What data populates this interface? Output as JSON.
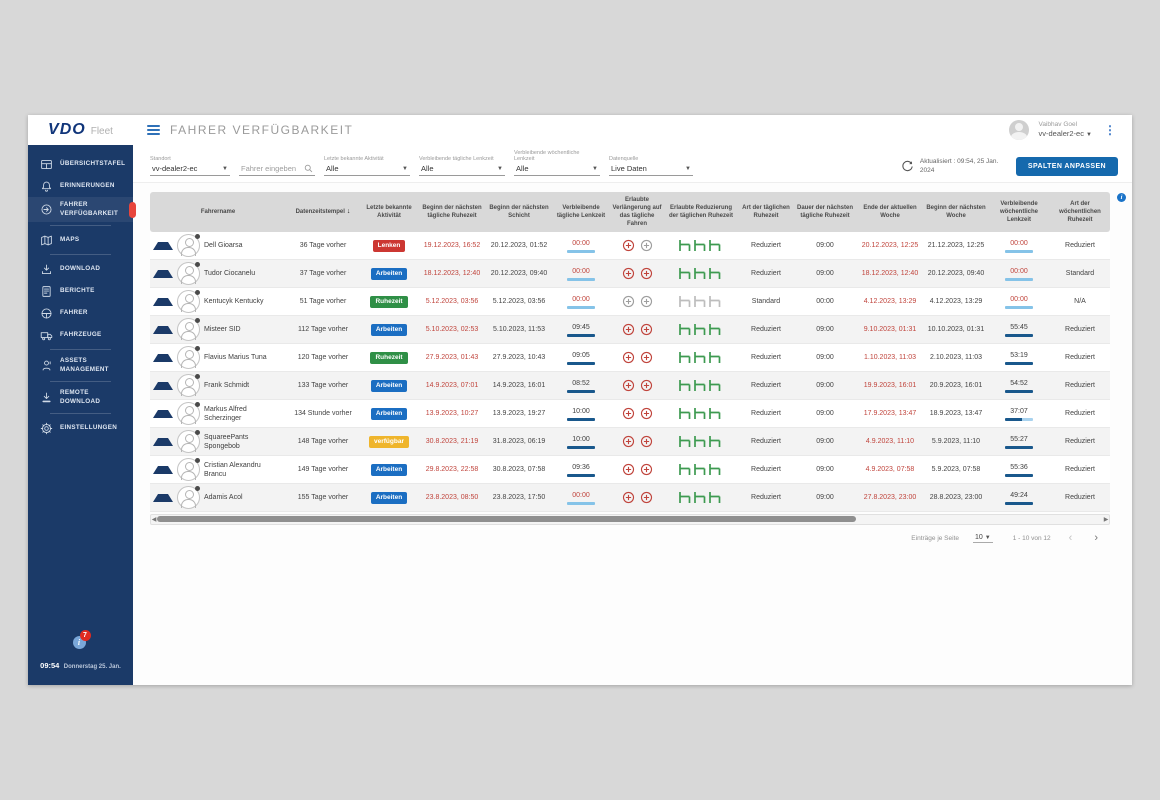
{
  "window": {
    "brand": "VDO",
    "brand_sub": "Fleet",
    "page_title": "FAHRER VERFÜGBARKEIT",
    "user": {
      "name": "Vaibhav Goel",
      "account": "vv-dealer2-ec"
    }
  },
  "sidebar": {
    "items": [
      {
        "icon": "dashboard-icon",
        "label": "ÜBERSICHTSTAFEL",
        "active": false,
        "divider": false
      },
      {
        "icon": "bell-icon",
        "label": "ERINNERUNGEN",
        "active": false,
        "divider": false
      },
      {
        "icon": "availability-icon",
        "label": "FAHRER VERFÜGBARKEIT",
        "active": true,
        "divider": false
      },
      {
        "icon": "map-icon",
        "label": "MAPS",
        "active": false,
        "divider": true
      },
      {
        "icon": "download-icon",
        "label": "DOWNLOAD",
        "active": false,
        "divider": true
      },
      {
        "icon": "report-icon",
        "label": "BERICHTE",
        "active": false,
        "divider": false
      },
      {
        "icon": "driver-icon",
        "label": "FAHRER",
        "active": false,
        "divider": false
      },
      {
        "icon": "truck-icon",
        "label": "FAHRZEUGE",
        "active": false,
        "divider": false
      },
      {
        "icon": "assets-icon",
        "label": "ASSETS MANAGEMENT",
        "active": false,
        "divider": true
      },
      {
        "icon": "remote-download-icon",
        "label": "REMOTE DOWNLOAD",
        "active": false,
        "divider": true
      },
      {
        "icon": "gear-icon",
        "label": "EINSTELLUNGEN",
        "active": false,
        "divider": true
      }
    ],
    "notification_badge": "7",
    "clock": "09:54",
    "date": "Donnerstag 25. Jan."
  },
  "filters": {
    "standort_label": "Standort",
    "standort_value": "vv-dealer2-ec",
    "search_placeholder": "Fahrer eingeben",
    "activity_label": "Letzte bekannte Aktivität",
    "activity_value": "Alle",
    "daily_label": "Verbleibende tägliche Lenkzeit",
    "daily_value": "Alle",
    "weekly_label": "Verbleibende wöchentliche Lenkzeit",
    "weekly_value": "Alle",
    "source_label": "Datenquelle",
    "source_value": "Live Daten",
    "refreshed_label": "Aktualisiert : 09:54, 25 Jan. 2024",
    "columns_button": "SPALTEN ANPASSEN"
  },
  "table": {
    "headers": [
      "Fahrername",
      "Datenzeitstempel",
      "Letzte bekannte Aktivität",
      "Beginn der nächsten tägliche Ruhezeit",
      "Beginn der nächsten Schicht",
      "Verbleibende tägliche Lenkzeit",
      "Erlaubte Verlängerung auf das tägliche Fahren",
      "Erlaubte Reduzierung der täglichen Ruhezeit",
      "Art der täglichen Ruhezeit",
      "Dauer der nächsten tägliche Ruhezeit",
      "Ende der aktuellen Woche",
      "Beginn der nächsten Woche",
      "Verbleibende wöchentliche Lenkzeit",
      "Art der wöchentlichen Ruhezeit"
    ],
    "sorted_column": "Datenzeitstempel",
    "rows": [
      {
        "name": "Dell Gioarsa",
        "timestamp": "36 Tage vorher",
        "activity": "Lenken",
        "activity_color": "red-b",
        "next_rest_begin": "19.12.2023, 16:52",
        "next_shift_begin": "20.12.2023, 01:52",
        "daily_remaining": "00:00",
        "daily_alert": true,
        "daily_bar": "light",
        "extension_clocks": [
          "red-c",
          "gray-c"
        ],
        "reduction_color": "green",
        "daily_rest_type": "Reduziert",
        "next_rest_duration": "09:00",
        "current_week_end": "20.12.2023, 12:25",
        "next_week_begin": "21.12.2023, 12:25",
        "weekly_remaining": "00:00",
        "weekly_alert": true,
        "weekly_bar": "light",
        "weekly_rest_type": "Reduziert"
      },
      {
        "name": "Tudor Ciocanelu",
        "timestamp": "37 Tage vorher",
        "activity": "Arbeiten",
        "activity_color": "blue-b",
        "next_rest_begin": "18.12.2023, 12:40",
        "next_shift_begin": "20.12.2023, 09:40",
        "daily_remaining": "00:00",
        "daily_alert": true,
        "daily_bar": "light",
        "extension_clocks": [
          "red-c",
          "red-c"
        ],
        "reduction_color": "green",
        "daily_rest_type": "Reduziert",
        "next_rest_duration": "09:00",
        "current_week_end": "18.12.2023, 12:40",
        "next_week_begin": "20.12.2023, 09:40",
        "weekly_remaining": "00:00",
        "weekly_alert": true,
        "weekly_bar": "light",
        "weekly_rest_type": "Standard"
      },
      {
        "name": "Kentucyk Kentucky",
        "timestamp": "51 Tage vorher",
        "activity": "Ruhezeit",
        "activity_color": "green-b",
        "next_rest_begin": "5.12.2023, 03:56",
        "next_shift_begin": "5.12.2023, 03:56",
        "daily_remaining": "00:00",
        "daily_alert": true,
        "daily_bar": "light",
        "extension_clocks": [
          "gray-c",
          "gray-c"
        ],
        "reduction_color": "gray",
        "daily_rest_type": "Standard",
        "next_rest_duration": "00:00",
        "current_week_end": "4.12.2023, 13:29",
        "next_week_begin": "4.12.2023, 13:29",
        "weekly_remaining": "00:00",
        "weekly_alert": true,
        "weekly_bar": "light",
        "weekly_rest_type": "N/A"
      },
      {
        "name": "Misteer SID",
        "timestamp": "112 Tage vorher",
        "activity": "Arbeiten",
        "activity_color": "blue-b",
        "next_rest_begin": "5.10.2023, 02:53",
        "next_shift_begin": "5.10.2023, 11:53",
        "daily_remaining": "09:45",
        "daily_alert": false,
        "daily_bar": "dark",
        "extension_clocks": [
          "red-c",
          "red-c"
        ],
        "reduction_color": "green",
        "daily_rest_type": "Reduziert",
        "next_rest_duration": "09:00",
        "current_week_end": "9.10.2023, 01:31",
        "next_week_begin": "10.10.2023, 01:31",
        "weekly_remaining": "55:45",
        "weekly_alert": false,
        "weekly_bar": "dark",
        "weekly_rest_type": "Reduziert"
      },
      {
        "name": "Flavius Marius Tuna",
        "timestamp": "120 Tage vorher",
        "activity": "Ruhezeit",
        "activity_color": "green-b",
        "next_rest_begin": "27.9.2023, 01:43",
        "next_shift_begin": "27.9.2023, 10:43",
        "daily_remaining": "09:05",
        "daily_alert": false,
        "daily_bar": "dark",
        "extension_clocks": [
          "red-c",
          "red-c"
        ],
        "reduction_color": "green",
        "daily_rest_type": "Reduziert",
        "next_rest_duration": "09:00",
        "current_week_end": "1.10.2023, 11:03",
        "next_week_begin": "2.10.2023, 11:03",
        "weekly_remaining": "53:19",
        "weekly_alert": false,
        "weekly_bar": "dark",
        "weekly_rest_type": "Reduziert"
      },
      {
        "name": "Frank Schmidt",
        "timestamp": "133 Tage vorher",
        "activity": "Arbeiten",
        "activity_color": "blue-b",
        "next_rest_begin": "14.9.2023, 07:01",
        "next_shift_begin": "14.9.2023, 16:01",
        "daily_remaining": "08:52",
        "daily_alert": false,
        "daily_bar": "dark",
        "extension_clocks": [
          "red-c",
          "red-c"
        ],
        "reduction_color": "green",
        "daily_rest_type": "Reduziert",
        "next_rest_duration": "09:00",
        "current_week_end": "19.9.2023, 16:01",
        "next_week_begin": "20.9.2023, 16:01",
        "weekly_remaining": "54:52",
        "weekly_alert": false,
        "weekly_bar": "dark",
        "weekly_rest_type": "Reduziert"
      },
      {
        "name": "Markus Alfred Scherzinger",
        "timestamp": "134 Stunde vorher",
        "activity": "Arbeiten",
        "activity_color": "blue-b",
        "next_rest_begin": "13.9.2023, 10:27",
        "next_shift_begin": "13.9.2023, 19:27",
        "daily_remaining": "10:00",
        "daily_alert": false,
        "daily_bar": "dark",
        "extension_clocks": [
          "red-c",
          "red-c"
        ],
        "reduction_color": "green",
        "daily_rest_type": "Reduziert",
        "next_rest_duration": "09:00",
        "current_week_end": "17.9.2023, 13:47",
        "next_week_begin": "18.9.2023, 13:47",
        "weekly_remaining": "37:07",
        "weekly_alert": false,
        "weekly_bar": "split",
        "weekly_rest_type": "Reduziert"
      },
      {
        "name": "SquareePants Spongebob",
        "timestamp": "148 Tage vorher",
        "activity": "verfügbar",
        "activity_color": "yellow-b",
        "next_rest_begin": "30.8.2023, 21:19",
        "next_shift_begin": "31.8.2023, 06:19",
        "daily_remaining": "10:00",
        "daily_alert": false,
        "daily_bar": "dark",
        "extension_clocks": [
          "red-c",
          "red-c"
        ],
        "reduction_color": "green",
        "daily_rest_type": "Reduziert",
        "next_rest_duration": "09:00",
        "current_week_end": "4.9.2023, 11:10",
        "next_week_begin": "5.9.2023, 11:10",
        "weekly_remaining": "55:27",
        "weekly_alert": false,
        "weekly_bar": "dark",
        "weekly_rest_type": "Reduziert"
      },
      {
        "name": "Cristian Alexandru Brancu",
        "timestamp": "149 Tage vorher",
        "activity": "Arbeiten",
        "activity_color": "blue-b",
        "next_rest_begin": "29.8.2023, 22:58",
        "next_shift_begin": "30.8.2023, 07:58",
        "daily_remaining": "09:36",
        "daily_alert": false,
        "daily_bar": "dark",
        "extension_clocks": [
          "red-c",
          "red-c"
        ],
        "reduction_color": "green",
        "daily_rest_type": "Reduziert",
        "next_rest_duration": "09:00",
        "current_week_end": "4.9.2023, 07:58",
        "next_week_begin": "5.9.2023, 07:58",
        "weekly_remaining": "55:36",
        "weekly_alert": false,
        "weekly_bar": "dark",
        "weekly_rest_type": "Reduziert"
      },
      {
        "name": "Adamis Acol",
        "timestamp": "155 Tage vorher",
        "activity": "Arbeiten",
        "activity_color": "blue-b",
        "next_rest_begin": "23.8.2023, 08:50",
        "next_shift_begin": "23.8.2023, 17:50",
        "daily_remaining": "00:00",
        "daily_alert": true,
        "daily_bar": "light",
        "extension_clocks": [
          "red-c",
          "red-c"
        ],
        "reduction_color": "green",
        "daily_rest_type": "Reduziert",
        "next_rest_duration": "09:00",
        "current_week_end": "27.8.2023, 23:00",
        "next_week_begin": "28.8.2023, 23:00",
        "weekly_remaining": "49:24",
        "weekly_alert": false,
        "weekly_bar": "dark",
        "weekly_rest_type": "Reduziert"
      }
    ]
  },
  "pagination": {
    "per_page_label": "Einträge je Seite",
    "per_page": "10",
    "range": "1 - 10 von 12"
  },
  "colors": {
    "sidebar": "#1b3a68",
    "accent_red": "#e8453c",
    "alert_text": "#c0443c",
    "badge_driving": "#cc3732",
    "badge_working": "#1b6ec2",
    "badge_rest": "#2f8f46",
    "badge_available": "#efb52c",
    "primary_button": "#1569ad",
    "bar_dark": "#19588c",
    "bar_light": "#85c3e8"
  }
}
